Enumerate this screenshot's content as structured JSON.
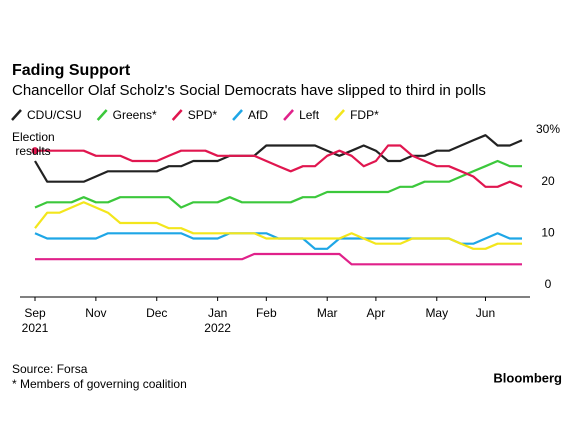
{
  "chart_data": {
    "type": "line",
    "title": "Fading Support",
    "subtitle": "Chancellor Olaf Scholz's Social Democrats have slipped to third in polls",
    "annotation": "Election results",
    "source": "Source: Forsa",
    "note": "* Members of governing coalition",
    "brand": "Bloomberg",
    "categories": [
      "Sep",
      null,
      null,
      null,
      null,
      "Nov",
      null,
      null,
      null,
      null,
      "Dec",
      null,
      null,
      null,
      null,
      "Jan",
      null,
      null,
      null,
      "Feb",
      null,
      null,
      null,
      null,
      "Mar",
      null,
      null,
      null,
      "Apr",
      null,
      null,
      null,
      null,
      "May",
      null,
      null,
      null,
      "Jun",
      null,
      null,
      null
    ],
    "category_years": [
      "2021",
      null,
      null,
      null,
      null,
      null,
      null,
      null,
      null,
      null,
      null,
      null,
      null,
      null,
      null,
      "2022",
      null,
      null,
      null,
      null,
      null,
      null,
      null,
      null,
      null,
      null,
      null,
      null,
      null,
      null,
      null,
      null,
      null,
      null,
      null,
      null,
      null,
      null,
      null,
      null,
      null
    ],
    "ylim": [
      0,
      30
    ],
    "yticks": [
      0,
      10,
      20,
      {
        "value": 30,
        "label": "30%"
      }
    ],
    "grid": false,
    "legend": "top-left",
    "series": [
      {
        "name": "CDU/CSU",
        "color": "#222222",
        "values": [
          24,
          20,
          20,
          20,
          20,
          21,
          22,
          22,
          22,
          22,
          22,
          23,
          23,
          24,
          24,
          24,
          25,
          25,
          25,
          27,
          27,
          27,
          27,
          27,
          26,
          25,
          26,
          27,
          26,
          24,
          24,
          25,
          25,
          26,
          26,
          27,
          28,
          29,
          27,
          27,
          28
        ]
      },
      {
        "name": "Greens*",
        "color": "#3cc83c",
        "values": [
          15,
          16,
          16,
          16,
          17,
          16,
          16,
          17,
          17,
          17,
          17,
          17,
          15,
          16,
          16,
          16,
          17,
          16,
          16,
          16,
          16,
          16,
          17,
          17,
          18,
          18,
          18,
          18,
          18,
          18,
          19,
          19,
          20,
          20,
          20,
          21,
          22,
          23,
          24,
          23,
          23
        ]
      },
      {
        "name": "SPD*",
        "color": "#e0164f",
        "values": [
          26,
          26,
          26,
          26,
          26,
          25,
          25,
          25,
          24,
          24,
          24,
          25,
          26,
          26,
          26,
          25,
          25,
          25,
          25,
          24,
          23,
          22,
          23,
          23,
          25,
          26,
          25,
          23,
          24,
          27,
          27,
          25,
          24,
          23,
          23,
          22,
          21,
          19,
          19,
          20,
          19
        ]
      },
      {
        "name": "AfD",
        "color": "#1ea6e6",
        "values": [
          10,
          9,
          9,
          9,
          9,
          9,
          10,
          10,
          10,
          10,
          10,
          10,
          10,
          9,
          9,
          9,
          10,
          10,
          10,
          10,
          9,
          9,
          9,
          7,
          7,
          9,
          9,
          9,
          9,
          9,
          9,
          9,
          9,
          9,
          9,
          8,
          8,
          9,
          10,
          9,
          9
        ]
      },
      {
        "name": "Left",
        "color": "#e0218a",
        "values": [
          5,
          5,
          5,
          5,
          5,
          5,
          5,
          5,
          5,
          5,
          5,
          5,
          5,
          5,
          5,
          5,
          5,
          5,
          6,
          6,
          6,
          6,
          6,
          6,
          6,
          6,
          4,
          4,
          4,
          4,
          4,
          4,
          4,
          4,
          4,
          4,
          4,
          4,
          4,
          4,
          4
        ]
      },
      {
        "name": "FDP*",
        "color": "#f3e61c",
        "values": [
          11,
          14,
          14,
          15,
          16,
          15,
          14,
          12,
          12,
          12,
          12,
          11,
          11,
          10,
          10,
          10,
          10,
          10,
          10,
          9,
          9,
          9,
          9,
          9,
          9,
          9,
          10,
          9,
          8,
          8,
          8,
          9,
          9,
          9,
          9,
          8,
          7,
          7,
          8,
          8,
          8
        ]
      }
    ]
  }
}
